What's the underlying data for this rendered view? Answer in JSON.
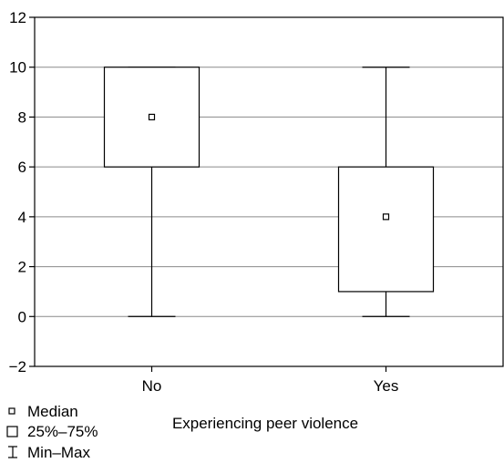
{
  "chart_data": {
    "type": "box",
    "xlabel": "Experiencing peer violence",
    "ylabel": "",
    "ylim": [
      -2,
      12
    ],
    "yticks": [
      -2,
      0,
      2,
      4,
      6,
      8,
      10,
      12
    ],
    "ytick_labels": [
      "−2",
      "0",
      "2",
      "4",
      "6",
      "8",
      "10",
      "12"
    ],
    "grid": "horizontal",
    "categories": [
      "No",
      "Yes"
    ],
    "boxes": [
      {
        "category": "No",
        "min": 0,
        "q1": 6,
        "median": 8,
        "q3": 10,
        "max": 10
      },
      {
        "category": "Yes",
        "min": 0,
        "q1": 1,
        "median": 4,
        "q3": 6,
        "max": 10
      }
    ],
    "legend": {
      "position": "bottom-left",
      "items": [
        {
          "symbol": "small-square",
          "label": "Median"
        },
        {
          "symbol": "square",
          "label": "25%–75%"
        },
        {
          "symbol": "whisker",
          "label": "Min–Max"
        }
      ]
    }
  }
}
